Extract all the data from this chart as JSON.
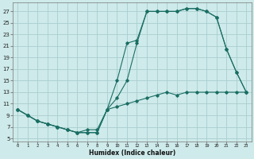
{
  "xlabel": "Humidex (Indice chaleur)",
  "background_color": "#ceeaea",
  "grid_color": "#aacece",
  "line_color": "#1a6e64",
  "xlim_min": -0.5,
  "xlim_max": 23.5,
  "ylim_min": 4.5,
  "ylim_max": 28.5,
  "yticks": [
    5,
    7,
    9,
    11,
    13,
    15,
    17,
    19,
    21,
    23,
    25,
    27
  ],
  "xticks": [
    0,
    1,
    2,
    3,
    4,
    5,
    6,
    7,
    8,
    9,
    10,
    11,
    12,
    13,
    14,
    15,
    16,
    17,
    18,
    19,
    20,
    21,
    22,
    23
  ],
  "series1_x": [
    0,
    1,
    2,
    3,
    4,
    5,
    6,
    7,
    8,
    9,
    10,
    11,
    12,
    13,
    14,
    15,
    16,
    17,
    18,
    19,
    20,
    21,
    22,
    23
  ],
  "series1_y": [
    10.0,
    9.0,
    8.0,
    7.5,
    7.0,
    6.5,
    6.0,
    6.0,
    6.0,
    10.0,
    15.0,
    21.5,
    22.0,
    27.0,
    27.0,
    27.0,
    27.0,
    27.5,
    27.5,
    27.0,
    26.0,
    20.5,
    16.5,
    13.0
  ],
  "series2_x": [
    0,
    1,
    2,
    3,
    4,
    5,
    6,
    7,
    8,
    9,
    10,
    11,
    12,
    13,
    14,
    15,
    16,
    17,
    18,
    19,
    20,
    21,
    22,
    23
  ],
  "series2_y": [
    10.0,
    9.0,
    8.0,
    7.5,
    7.0,
    6.5,
    6.0,
    6.0,
    6.0,
    10.0,
    12.0,
    15.0,
    21.5,
    27.0,
    27.0,
    27.0,
    27.0,
    27.5,
    27.5,
    27.0,
    26.0,
    20.5,
    16.5,
    13.0
  ],
  "series3_x": [
    0,
    1,
    2,
    3,
    4,
    5,
    6,
    7,
    8,
    9,
    10,
    11,
    12,
    13,
    14,
    15,
    16,
    17,
    18,
    19,
    20,
    21,
    22,
    23
  ],
  "series3_y": [
    10.0,
    9.0,
    8.0,
    7.5,
    7.0,
    6.5,
    6.0,
    6.5,
    6.5,
    10.0,
    10.5,
    11.0,
    11.5,
    12.0,
    12.5,
    13.0,
    12.5,
    13.0,
    13.0,
    13.0,
    13.0,
    13.0,
    13.0,
    13.0
  ]
}
